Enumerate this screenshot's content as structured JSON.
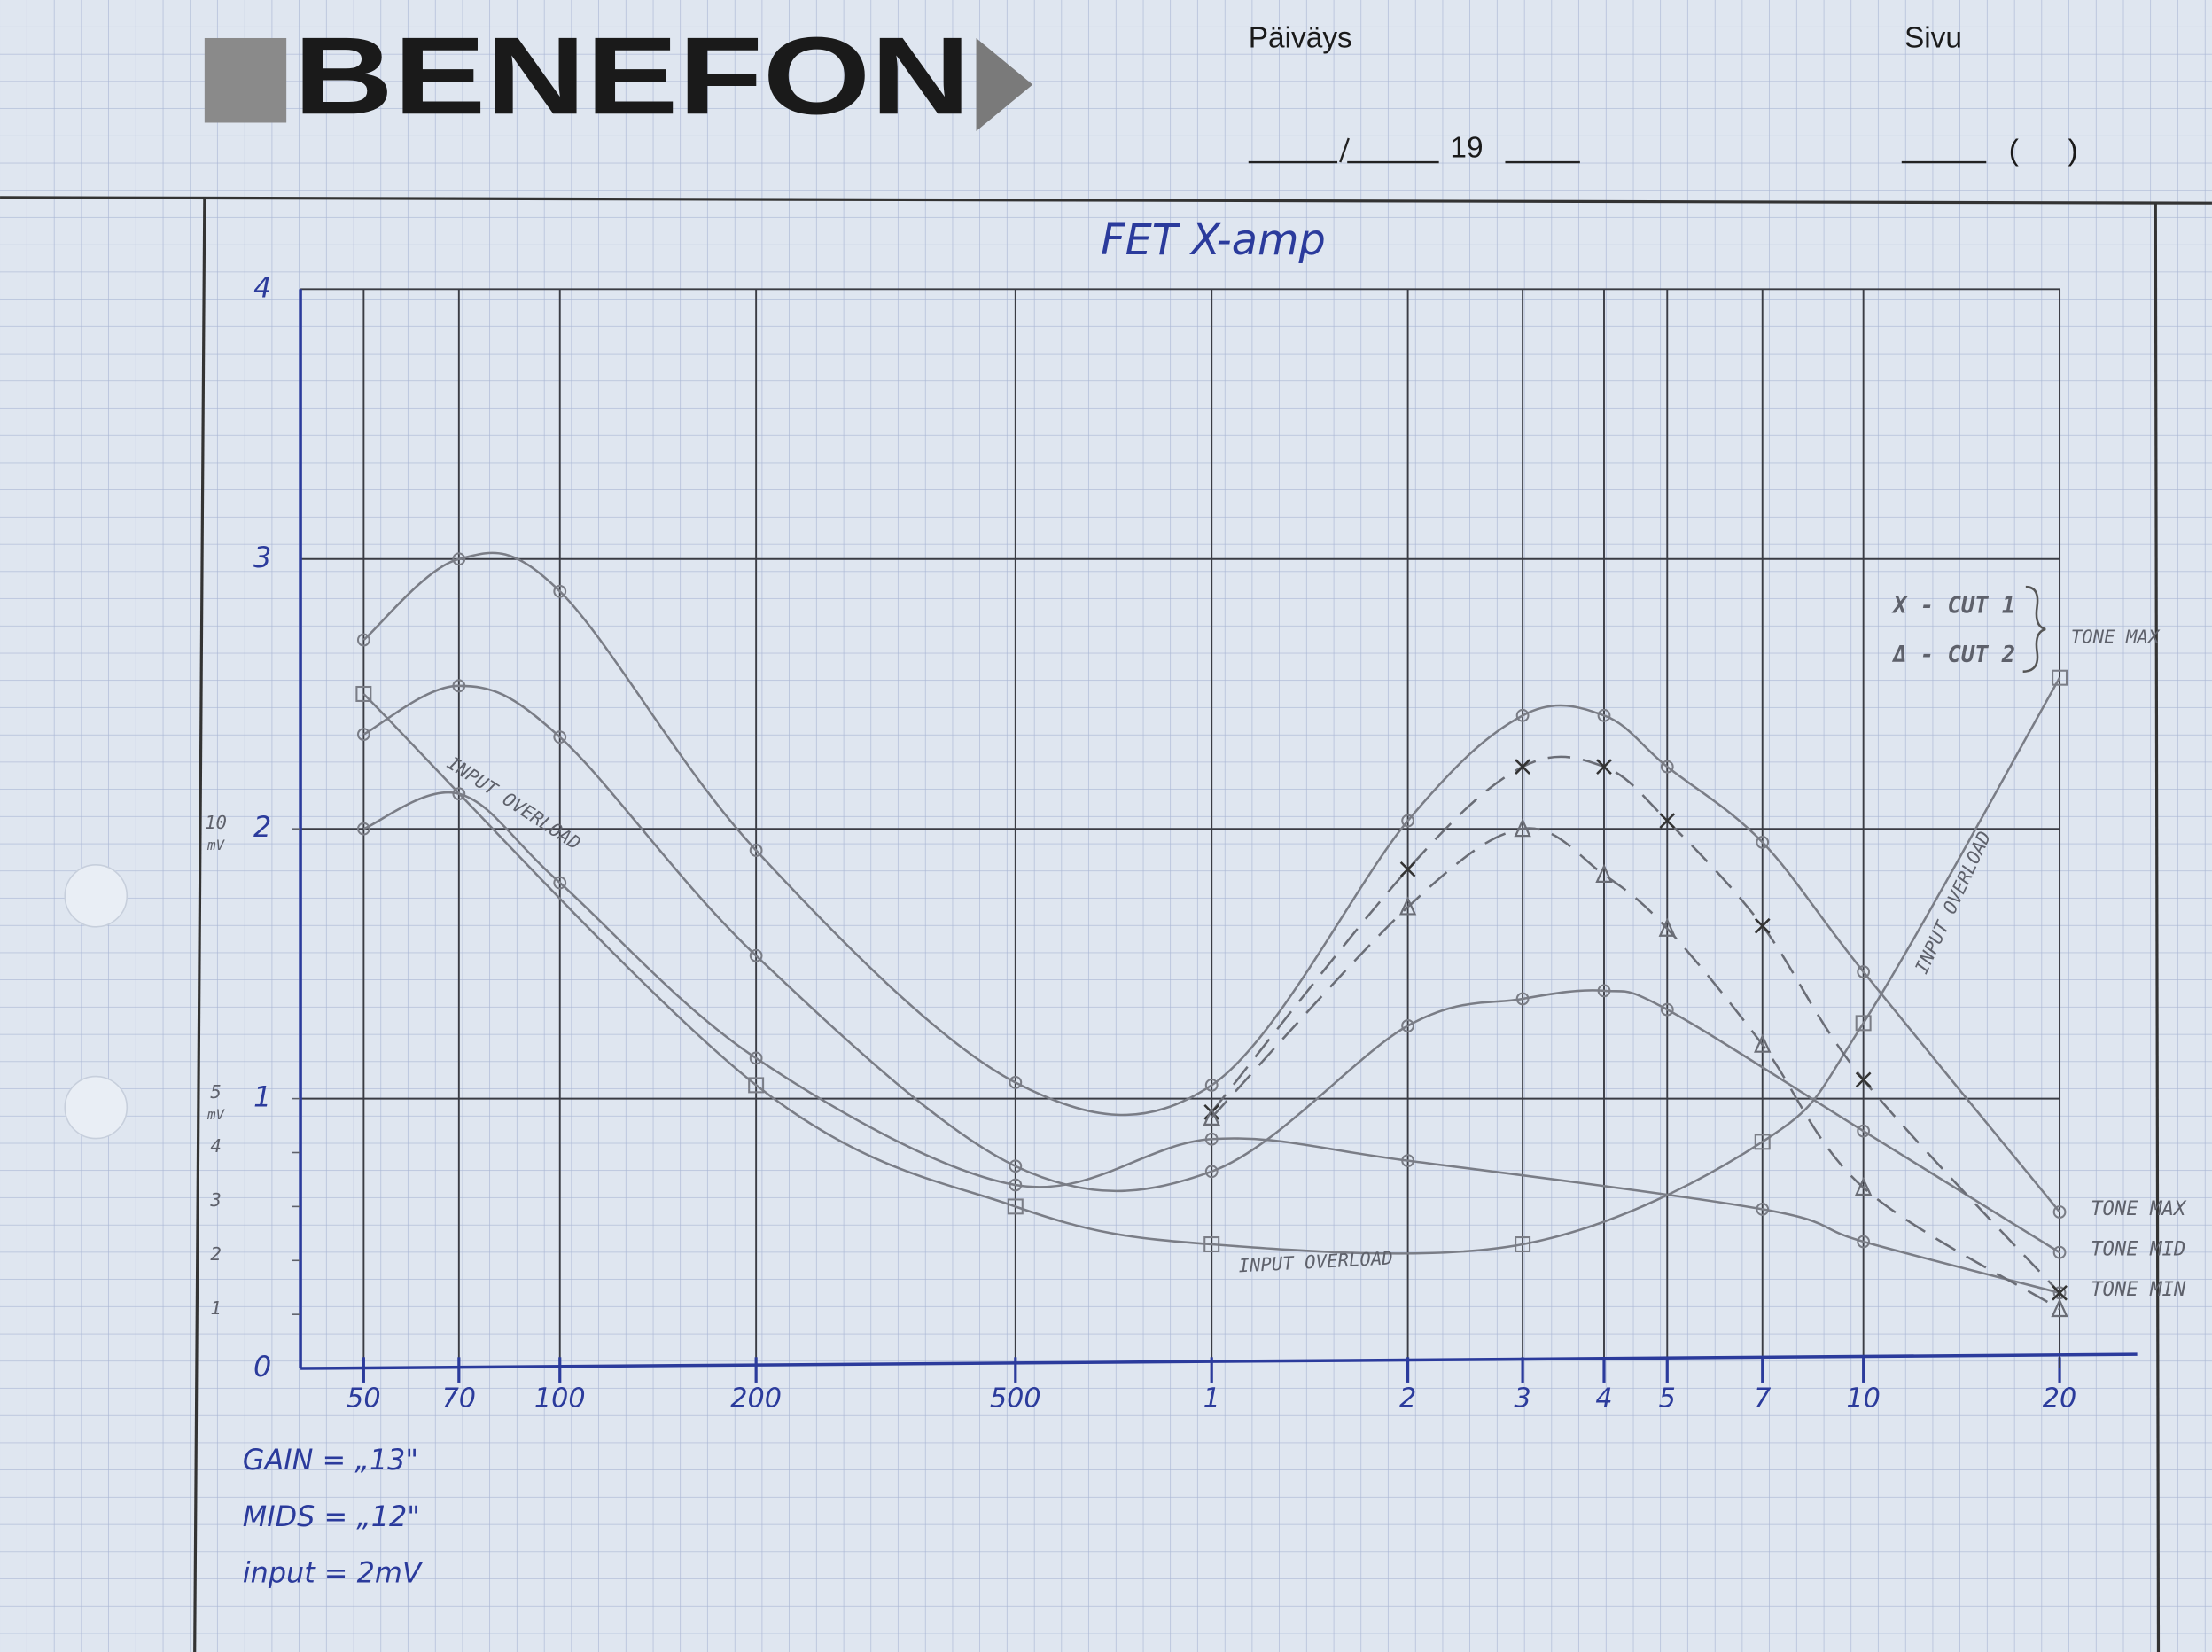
{
  "header": {
    "logo": "BENEFON",
    "date_label": "Päiväys",
    "year": "19",
    "page_label": "Sivu",
    "page_field": "(      )"
  },
  "chart_data": {
    "type": "line",
    "title": "FET X-amp",
    "xscale": "log",
    "grid": true,
    "legend": "upper right",
    "xlim": [
      40,
      20000
    ],
    "xticks": [
      50,
      70,
      100,
      200,
      500,
      {
        "value": 1000,
        "label": "1"
      },
      {
        "value": 2000,
        "label": "2"
      },
      {
        "value": 3000,
        "label": "3"
      },
      {
        "value": 4000,
        "label": "4"
      },
      {
        "value": 5000,
        "label": "5"
      },
      {
        "value": 7000,
        "label": "7"
      },
      {
        "value": 10000,
        "label": "10"
      },
      {
        "value": 20000,
        "label": "20"
      }
    ],
    "ylim": [
      0,
      4
    ],
    "yticks": [
      0,
      1,
      2,
      3,
      4
    ],
    "y2lim": [
      0,
      20
    ],
    "y2ticks": [
      1,
      2,
      3,
      4,
      5,
      10
    ],
    "y2label": "mV",
    "series": [
      {
        "name": "TONE MAX",
        "color": "#7a7d86",
        "marker": "circle",
        "dashed": false,
        "x": [
          50,
          70,
          100,
          200,
          500,
          1000,
          2000,
          3000,
          4000,
          5000,
          7000,
          10000,
          20000
        ],
        "values": [
          2.7,
          3.0,
          2.88,
          1.92,
          1.06,
          1.05,
          2.03,
          2.42,
          2.42,
          2.23,
          1.95,
          1.47,
          0.58
        ]
      },
      {
        "name": "TONE MID",
        "color": "#7a7d86",
        "marker": "circle",
        "dashed": false,
        "x": [
          50,
          70,
          100,
          200,
          500,
          1000,
          2000,
          3000,
          4000,
          5000,
          10000,
          20000
        ],
        "values": [
          2.35,
          2.53,
          2.34,
          1.53,
          0.75,
          0.73,
          1.27,
          1.37,
          1.4,
          1.33,
          0.88,
          0.43
        ]
      },
      {
        "name": "TONE MIN",
        "color": "#7a7d86",
        "marker": "circle",
        "dashed": false,
        "x": [
          50,
          70,
          100,
          200,
          500,
          1000,
          2000,
          7000,
          10000,
          20000
        ],
        "values": [
          2.0,
          2.13,
          1.8,
          1.15,
          0.68,
          0.85,
          0.77,
          0.59,
          0.47,
          0.28
        ]
      },
      {
        "color": "#7a7d86",
        "marker": "square",
        "dashed": false,
        "x": [
          50,
          200,
          500,
          1000,
          3000,
          7000,
          10000,
          20000
        ],
        "values": [
          2.5,
          1.05,
          0.6,
          0.46,
          0.46,
          0.84,
          1.28,
          2.56
        ]
      },
      {
        "name": "X - CUT 1",
        "color": "#6a6d76",
        "marker": "x",
        "dashed": true,
        "x": [
          1000,
          2000,
          3000,
          4000,
          5000,
          7000,
          10000,
          20000
        ],
        "values": [
          0.95,
          1.85,
          2.23,
          2.23,
          2.03,
          1.64,
          1.07,
          0.28
        ]
      },
      {
        "name": "Δ - CUT 2",
        "color": "#6a6d76",
        "marker": "triangle",
        "dashed": true,
        "x": [
          1000,
          2000,
          3000,
          4000,
          5000,
          7000,
          10000,
          20000
        ],
        "values": [
          0.93,
          1.71,
          2.0,
          1.83,
          1.63,
          1.2,
          0.67,
          0.22
        ]
      }
    ],
    "annotations": [
      "INPUT OVERLOAD",
      "INPUT OVERLOAD",
      "INPUT OVERLOAD",
      "TONE MAX"
    ],
    "notes": [
      "GAIN = „13\"",
      "MIDS = „12\"",
      "input = 2mV"
    ]
  }
}
